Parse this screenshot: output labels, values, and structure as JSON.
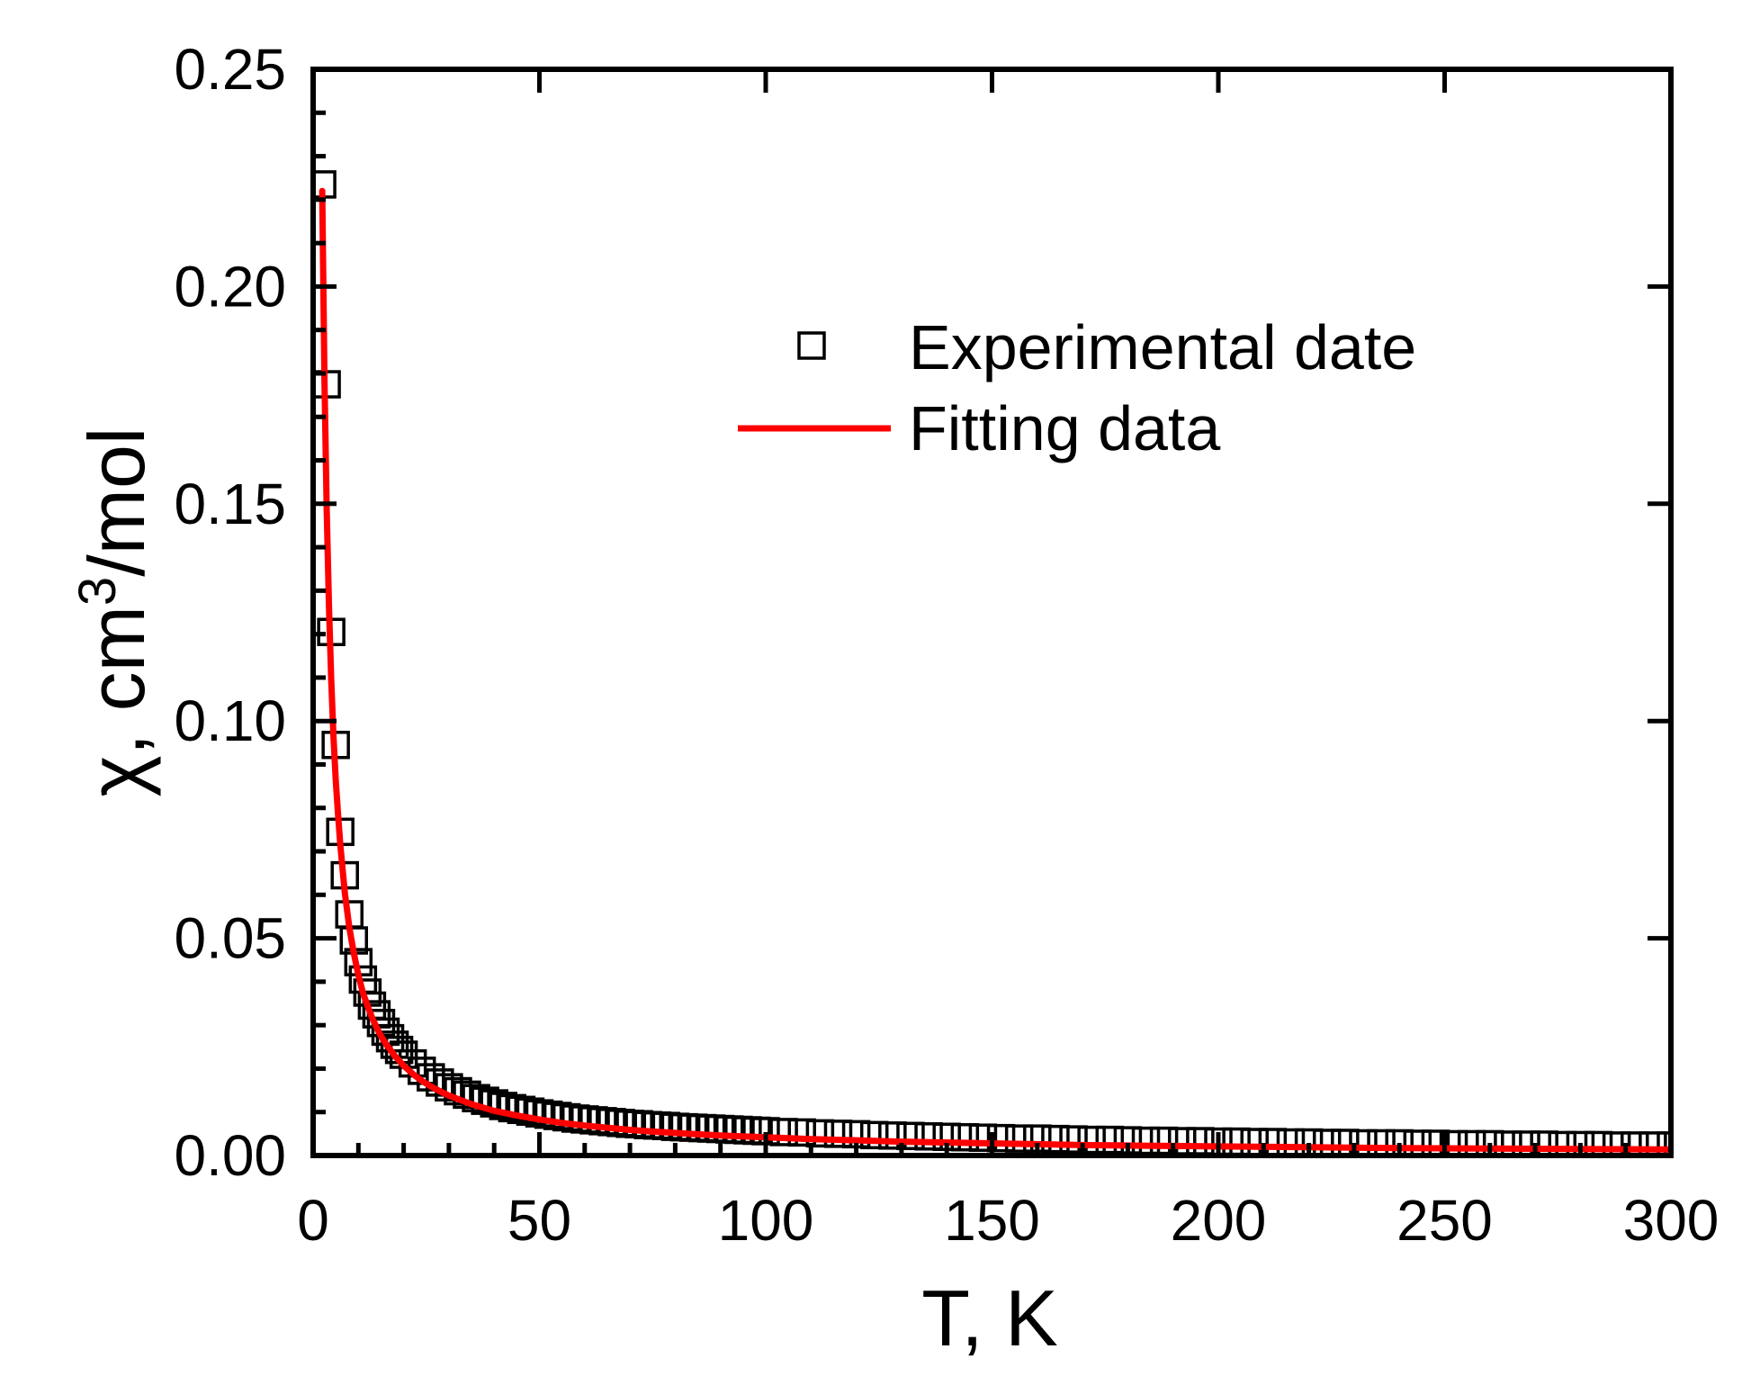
{
  "chart_data": {
    "type": "scatter",
    "title": "",
    "xlabel": "T, K",
    "ylabel": {
      "prefix": "χ, cm",
      "superscript": "3",
      "suffix": "/mol"
    },
    "xlim": [
      0,
      300
    ],
    "ylim": [
      0,
      0.25
    ],
    "xticks": [
      0,
      50,
      100,
      150,
      200,
      250,
      300
    ],
    "xtick_labels": [
      "0",
      "50",
      "100",
      "150",
      "200",
      "250",
      "300"
    ],
    "yticks": [
      0,
      0.05,
      0.1,
      0.15,
      0.2,
      0.25
    ],
    "ytick_labels": [
      "0.00",
      "0.05",
      "0.10",
      "0.15",
      "0.20",
      "0.25"
    ],
    "grid": false,
    "legend_position": "top-right",
    "series": [
      {
        "name": "Experimental date",
        "kind": "scatter",
        "marker": "open-square",
        "color": "#000000",
        "x": [
          2,
          3,
          4,
          5,
          6,
          7,
          8,
          9,
          10,
          11,
          12,
          13,
          14,
          15,
          16,
          17,
          18,
          19,
          20,
          22,
          24,
          26,
          28,
          30,
          32,
          34,
          36,
          38,
          40,
          42,
          44,
          46,
          48,
          50,
          52,
          54,
          56,
          58,
          60,
          62,
          64,
          66,
          68,
          70,
          72,
          74,
          76,
          78,
          80,
          82,
          84,
          86,
          88,
          90,
          92,
          94,
          96,
          98,
          100,
          104,
          108,
          112,
          116,
          120,
          124,
          128,
          132,
          136,
          140,
          144,
          148,
          152,
          156,
          160,
          164,
          168,
          172,
          176,
          180,
          184,
          188,
          192,
          196,
          200,
          204,
          208,
          212,
          216,
          220,
          224,
          228,
          232,
          236,
          240,
          244,
          248,
          252,
          256,
          260,
          264,
          268,
          272,
          276,
          280,
          284,
          288,
          292,
          296,
          300
        ],
        "y": [
          0.2235,
          0.1775,
          0.1205,
          0.0945,
          0.0745,
          0.0645,
          0.0555,
          0.0495,
          0.0445,
          0.0405,
          0.0375,
          0.0345,
          0.0325,
          0.0305,
          0.0285,
          0.027,
          0.0255,
          0.0243,
          0.0232,
          0.0212,
          0.0195,
          0.018,
          0.0168,
          0.0157,
          0.0148,
          0.014,
          0.0132,
          0.0126,
          0.012,
          0.0114,
          0.0109,
          0.0105,
          0.0101,
          0.0097,
          0.0094,
          0.0091,
          0.0088,
          0.0085,
          0.0083,
          0.0081,
          0.0079,
          0.0077,
          0.0075,
          0.0073,
          0.0072,
          0.007,
          0.0069,
          0.0068,
          0.0066,
          0.0065,
          0.0064,
          0.0063,
          0.0062,
          0.0061,
          0.006,
          0.0059,
          0.0058,
          0.0057,
          0.0056,
          0.0054,
          0.0053,
          0.0051,
          0.005,
          0.0049,
          0.0047,
          0.0046,
          0.0045,
          0.0044,
          0.0043,
          0.0042,
          0.0041,
          0.004,
          0.0039,
          0.0039,
          0.0038,
          0.0037,
          0.0036,
          0.0036,
          0.0035,
          0.0034,
          0.0034,
          0.0033,
          0.0033,
          0.0032,
          0.0032,
          0.0031,
          0.0031,
          0.003,
          0.003,
          0.0029,
          0.0029,
          0.0028,
          0.0028,
          0.0028,
          0.0027,
          0.0027,
          0.0026,
          0.0026,
          0.0026,
          0.0025,
          0.0025,
          0.0025,
          0.0024,
          0.0024,
          0.0024,
          0.0023,
          0.0023,
          0.0023,
          0.0023
        ]
      },
      {
        "name": "Fitting data",
        "kind": "line",
        "color": "#ff0000",
        "x": [
          2,
          2.5,
          3,
          3.5,
          4,
          4.5,
          5,
          5.5,
          6,
          7,
          8,
          9,
          10,
          11,
          12,
          13,
          14,
          15,
          16,
          18,
          20,
          22,
          24,
          26,
          28,
          30,
          35,
          40,
          45,
          50,
          55,
          60,
          65,
          70,
          75,
          80,
          90,
          100,
          110,
          120,
          130,
          140,
          150,
          160,
          170,
          180,
          190,
          200,
          220,
          240,
          260,
          280,
          300
        ],
        "y": [
          0.222,
          0.1785,
          0.1485,
          0.1265,
          0.1095,
          0.0965,
          0.0865,
          0.0785,
          0.0715,
          0.0605,
          0.0525,
          0.0465,
          0.0415,
          0.0375,
          0.0345,
          0.0318,
          0.0295,
          0.0275,
          0.0258,
          0.023,
          0.0207,
          0.0188,
          0.0172,
          0.0159,
          0.0148,
          0.0138,
          0.0118,
          0.0103,
          0.0092,
          0.0083,
          0.0075,
          0.0069,
          0.0064,
          0.0059,
          0.0055,
          0.0052,
          0.0046,
          0.0042,
          0.0038,
          0.0035,
          0.0032,
          0.003,
          0.0028,
          0.0026,
          0.0024,
          0.0023,
          0.0022,
          0.0021,
          0.0019,
          0.0017,
          0.0016,
          0.0015,
          0.0014
        ]
      }
    ]
  }
}
